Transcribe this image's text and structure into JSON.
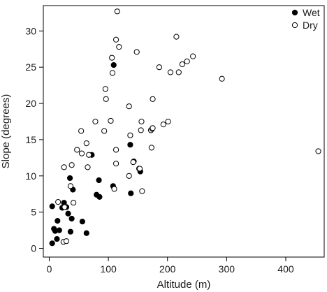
{
  "chart_data": {
    "type": "scatter",
    "title": "",
    "xlabel": "Altitude (m)",
    "ylabel": "Slope (degrees)",
    "xlim": [
      -10,
      465
    ],
    "ylim": [
      -1.2,
      33.5
    ],
    "xticks": [
      0,
      100,
      200,
      300,
      400
    ],
    "yticks": [
      0,
      5,
      10,
      15,
      20,
      25,
      30
    ],
    "grid": false,
    "legend_position": "top-right",
    "series": [
      {
        "name": "Wet",
        "marker": "filled-circle",
        "color": "#000000",
        "points": [
          [
            5,
            0.7
          ],
          [
            5,
            5.8
          ],
          [
            8,
            2.7
          ],
          [
            10,
            2.4
          ],
          [
            13,
            1.3
          ],
          [
            14,
            3.8
          ],
          [
            17,
            2.5
          ],
          [
            22,
            5.6
          ],
          [
            25,
            6.3
          ],
          [
            29,
            5.7
          ],
          [
            32,
            4.8
          ],
          [
            35,
            9.7
          ],
          [
            36,
            2.3
          ],
          [
            38,
            4.1
          ],
          [
            40,
            8.1
          ],
          [
            56,
            3.7
          ],
          [
            63,
            2.1
          ],
          [
            72,
            12.9
          ],
          [
            80,
            7.4
          ],
          [
            84,
            9.4
          ],
          [
            85,
            7.1
          ],
          [
            109,
            25.3
          ],
          [
            108,
            8.6
          ],
          [
            137,
            14.3
          ],
          [
            138,
            7.6
          ],
          [
            143,
            12.0
          ],
          [
            152,
            11.0
          ],
          [
            154,
            10.6
          ]
        ]
      },
      {
        "name": "Dry",
        "marker": "open-circle",
        "color": "#000000",
        "points": [
          [
            15,
            6.4
          ],
          [
            24,
            0.9
          ],
          [
            25,
            11.2
          ],
          [
            26,
            5.7
          ],
          [
            29,
            1.0
          ],
          [
            36,
            8.6
          ],
          [
            38,
            11.5
          ],
          [
            41,
            6.3
          ],
          [
            47,
            13.6
          ],
          [
            54,
            16.2
          ],
          [
            55,
            13.1
          ],
          [
            63,
            14.5
          ],
          [
            65,
            11.2
          ],
          [
            67,
            12.9
          ],
          [
            78,
            17.5
          ],
          [
            93,
            16.2
          ],
          [
            95,
            22.0
          ],
          [
            96,
            20.6
          ],
          [
            104,
            17.6
          ],
          [
            106,
            26.3
          ],
          [
            107,
            24.2
          ],
          [
            110,
            8.2
          ],
          [
            113,
            28.8
          ],
          [
            113,
            13.6
          ],
          [
            113,
            11.7
          ],
          [
            115,
            32.7
          ],
          [
            118,
            27.8
          ],
          [
            135,
            19.6
          ],
          [
            135,
            10.0
          ],
          [
            137,
            15.6
          ],
          [
            142,
            11.9
          ],
          [
            148,
            27.1
          ],
          [
            153,
            11.0
          ],
          [
            155,
            16.3
          ],
          [
            156,
            17.5
          ],
          [
            157,
            7.9
          ],
          [
            172,
            16.3
          ],
          [
            173,
            13.9
          ],
          [
            174,
            16.5
          ],
          [
            175,
            16.6
          ],
          [
            175,
            20.6
          ],
          [
            186,
            25.0
          ],
          [
            193,
            17.1
          ],
          [
            201,
            17.5
          ],
          [
            205,
            24.3
          ],
          [
            215,
            29.2
          ],
          [
            219,
            24.3
          ],
          [
            225,
            25.4
          ],
          [
            233,
            25.8
          ],
          [
            243,
            26.5
          ],
          [
            292,
            23.4
          ],
          [
            455,
            13.4
          ]
        ]
      }
    ]
  }
}
